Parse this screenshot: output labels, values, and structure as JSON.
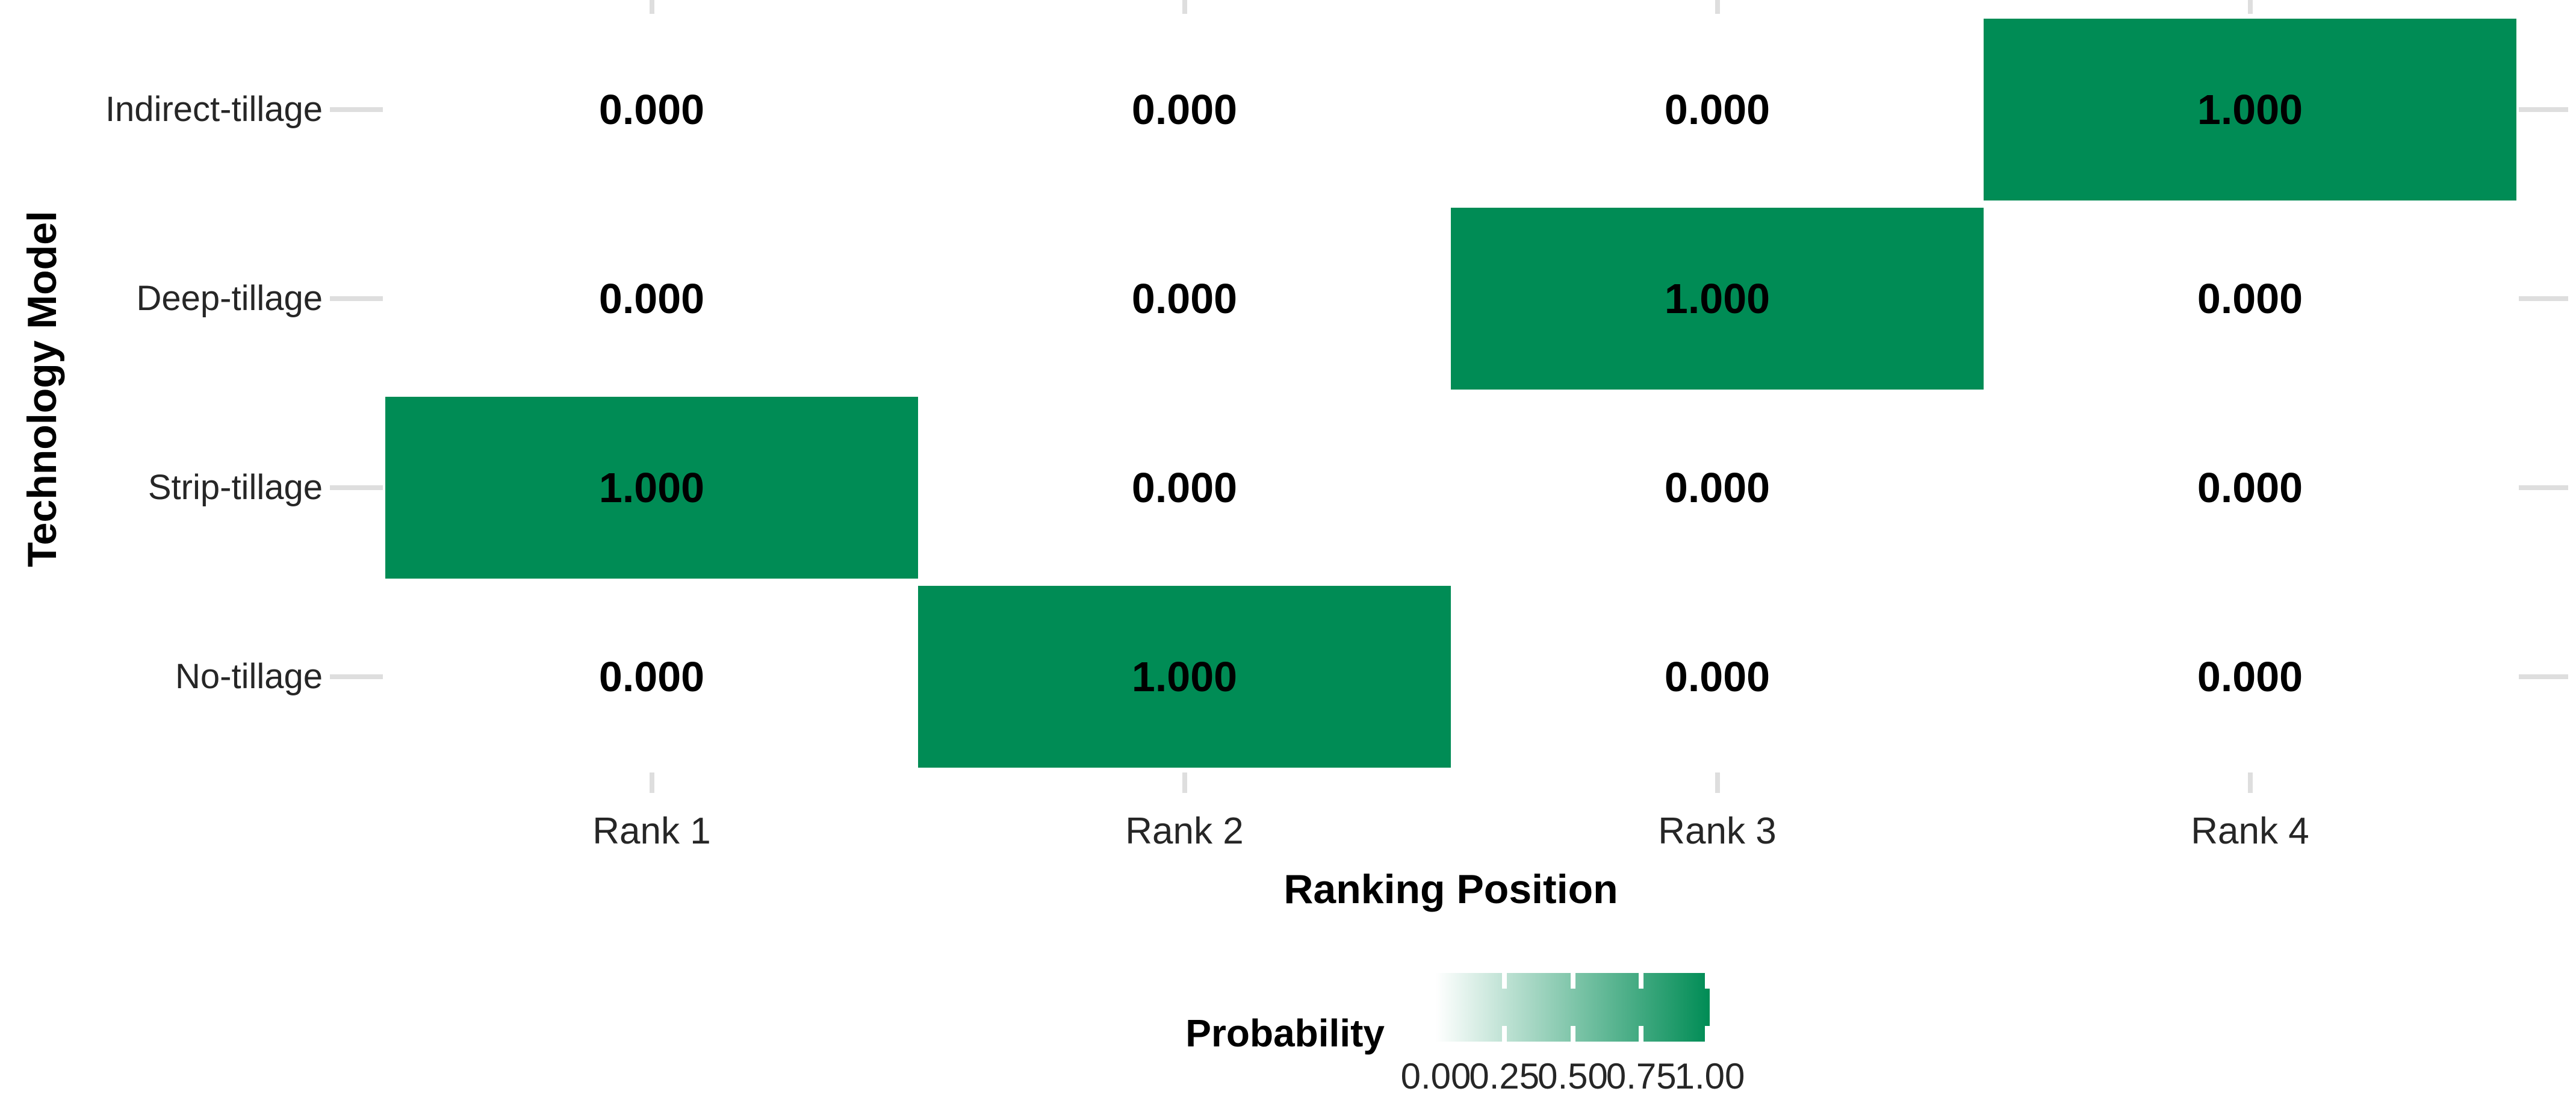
{
  "figure": {
    "background": "#FFFFFF"
  },
  "axes": {
    "x_title": "Ranking Position",
    "y_title": "Technology Model",
    "x_tick_labels": [
      "Rank 1",
      "Rank 2",
      "Rank 3",
      "Rank 4"
    ],
    "y_tick_labels": [
      "Indirect-tillage",
      "Deep-tillage",
      "Strip-tillage",
      "No-tillage"
    ]
  },
  "legend": {
    "title": "Probability",
    "tick_labels": [
      "0.00",
      "0.25",
      "0.50",
      "0.75",
      "1.00"
    ]
  },
  "colors": {
    "tile_green": "#008C55",
    "tile_zero": "#FFFFFF",
    "tick_mark": "#DEDEDE",
    "axis_text": "#262626",
    "title_text": "#000000",
    "gradient_low": "#FFFFFF",
    "gradient_high": "#008C55"
  },
  "chart_data": {
    "type": "heatmap",
    "title": "",
    "xlabel": "Ranking Position",
    "ylabel": "Technology Model",
    "x_categories": [
      "Rank 1",
      "Rank 2",
      "Rank 3",
      "Rank 4"
    ],
    "y_categories": [
      "Indirect-tillage",
      "Deep-tillage",
      "Strip-tillage",
      "No-tillage"
    ],
    "values": [
      [
        0.0,
        0.0,
        0.0,
        1.0
      ],
      [
        0.0,
        0.0,
        1.0,
        0.0
      ],
      [
        1.0,
        0.0,
        0.0,
        0.0
      ],
      [
        0.0,
        1.0,
        0.0,
        0.0
      ]
    ],
    "cell_labels": [
      [
        "0.000",
        "0.000",
        "0.000",
        "1.000"
      ],
      [
        "0.000",
        "0.000",
        "1.000",
        "0.000"
      ],
      [
        "1.000",
        "0.000",
        "0.000",
        "0.000"
      ],
      [
        "0.000",
        "1.000",
        "0.000",
        "0.000"
      ]
    ],
    "grid": false,
    "legend_position": "bottom",
    "colorbar": {
      "title": "Probability",
      "min": 0,
      "max": 1,
      "tick_values": [
        0,
        0.25,
        0.5,
        0.75,
        1
      ],
      "tick_labels": [
        "0.00",
        "0.25",
        "0.50",
        "0.75",
        "1.00"
      ],
      "low_color": "#FFFFFF",
      "high_color": "#008C55",
      "orientation": "horizontal"
    }
  }
}
